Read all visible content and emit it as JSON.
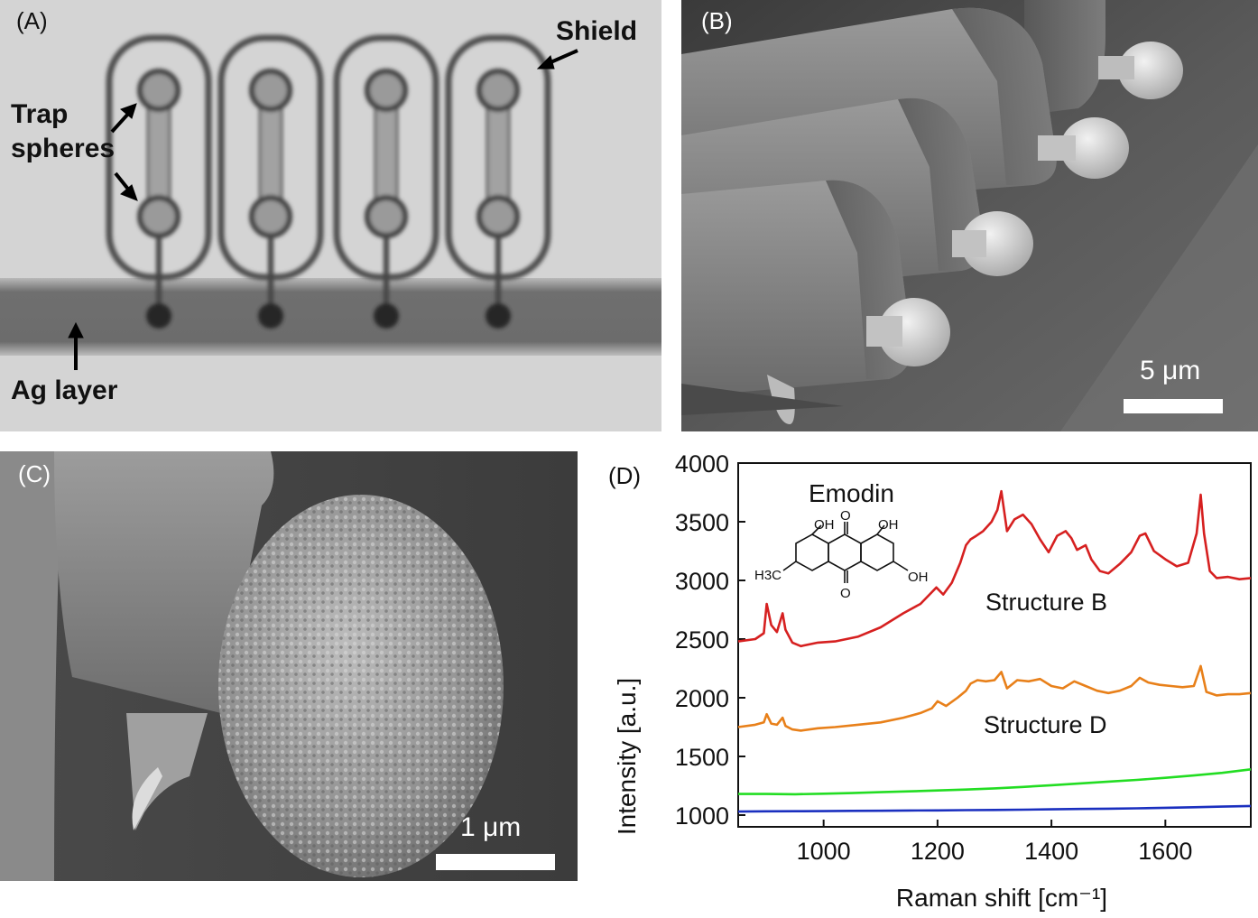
{
  "panels": {
    "a": {
      "label": "(A)",
      "annotations": {
        "shield": "Shield",
        "trap_line1": "Trap",
        "trap_line2": "spheres",
        "ag_layer": "Ag layer"
      }
    },
    "b": {
      "label": "(B)",
      "scale_label": "5 μm"
    },
    "c": {
      "label": "(C)",
      "scale_label": "1 μm"
    },
    "d": {
      "label": "(D)"
    }
  },
  "chart_data": {
    "type": "line",
    "xlabel": "Raman shift [cm⁻¹]",
    "ylabel": "Intensity [a.u.]",
    "xlim": [
      850,
      1750
    ],
    "ylim": [
      900,
      4000
    ],
    "xticks": [
      1000,
      1200,
      1400,
      1600
    ],
    "yticks": [
      1000,
      1500,
      2000,
      2500,
      3000,
      3500,
      4000
    ],
    "inset": {
      "title": "Emodin",
      "labels": {
        "oh_left": "OH",
        "oh_right": "OH",
        "oh_bottom": "OH",
        "o_top": "O",
        "o_bottom": "O",
        "ch3": "H3C"
      }
    },
    "annotations": [
      {
        "text": "Structure B"
      },
      {
        "text": "Structure D"
      }
    ],
    "series": [
      {
        "color": "#d62020",
        "x": [
          850,
          880,
          895,
          900,
          908,
          918,
          928,
          933,
          945,
          960,
          990,
          1020,
          1060,
          1100,
          1140,
          1170,
          1190,
          1198,
          1210,
          1225,
          1240,
          1250,
          1258,
          1268,
          1280,
          1295,
          1305,
          1312,
          1322,
          1335,
          1350,
          1365,
          1380,
          1395,
          1410,
          1425,
          1435,
          1445,
          1460,
          1470,
          1485,
          1500,
          1520,
          1540,
          1555,
          1565,
          1580,
          1600,
          1620,
          1640,
          1655,
          1662,
          1668,
          1678,
          1690,
          1710,
          1730,
          1750
        ],
        "y": [
          2480,
          2500,
          2550,
          2800,
          2620,
          2560,
          2720,
          2580,
          2470,
          2440,
          2470,
          2480,
          2520,
          2600,
          2720,
          2800,
          2900,
          2940,
          2880,
          2980,
          3150,
          3300,
          3350,
          3380,
          3420,
          3500,
          3600,
          3760,
          3420,
          3520,
          3560,
          3480,
          3350,
          3240,
          3380,
          3420,
          3360,
          3260,
          3300,
          3180,
          3080,
          3060,
          3140,
          3240,
          3380,
          3400,
          3250,
          3180,
          3120,
          3150,
          3400,
          3730,
          3400,
          3080,
          3020,
          3030,
          3010,
          3020
        ]
      },
      {
        "color": "#e8801a",
        "x": [
          850,
          880,
          895,
          900,
          908,
          918,
          928,
          933,
          945,
          960,
          990,
          1020,
          1060,
          1100,
          1140,
          1170,
          1190,
          1200,
          1215,
          1235,
          1250,
          1258,
          1270,
          1285,
          1300,
          1312,
          1322,
          1340,
          1360,
          1380,
          1400,
          1420,
          1440,
          1460,
          1480,
          1500,
          1520,
          1540,
          1555,
          1570,
          1590,
          1610,
          1630,
          1650,
          1662,
          1672,
          1690,
          1710,
          1730,
          1750
        ],
        "y": [
          1750,
          1770,
          1790,
          1860,
          1780,
          1770,
          1830,
          1760,
          1730,
          1720,
          1740,
          1750,
          1770,
          1790,
          1830,
          1870,
          1910,
          1970,
          1930,
          2000,
          2060,
          2120,
          2150,
          2140,
          2150,
          2220,
          2080,
          2150,
          2140,
          2160,
          2100,
          2080,
          2140,
          2100,
          2060,
          2040,
          2060,
          2100,
          2170,
          2130,
          2110,
          2100,
          2090,
          2100,
          2270,
          2050,
          2020,
          2030,
          2030,
          2040
        ]
      },
      {
        "color": "#22dd22",
        "x": [
          850,
          900,
          950,
          1000,
          1050,
          1100,
          1150,
          1200,
          1250,
          1300,
          1350,
          1400,
          1450,
          1500,
          1550,
          1600,
          1650,
          1700,
          1750
        ],
        "y": [
          1180,
          1180,
          1178,
          1182,
          1188,
          1195,
          1202,
          1210,
          1218,
          1228,
          1240,
          1255,
          1270,
          1285,
          1300,
          1318,
          1338,
          1360,
          1390
        ]
      },
      {
        "color": "#1a2fbf",
        "x": [
          850,
          900,
          950,
          1000,
          1050,
          1100,
          1150,
          1200,
          1250,
          1300,
          1350,
          1400,
          1450,
          1500,
          1550,
          1600,
          1650,
          1700,
          1750
        ],
        "y": [
          1030,
          1032,
          1033,
          1034,
          1036,
          1037,
          1039,
          1040,
          1042,
          1044,
          1046,
          1049,
          1052,
          1055,
          1058,
          1062,
          1067,
          1072,
          1078
        ]
      }
    ]
  }
}
